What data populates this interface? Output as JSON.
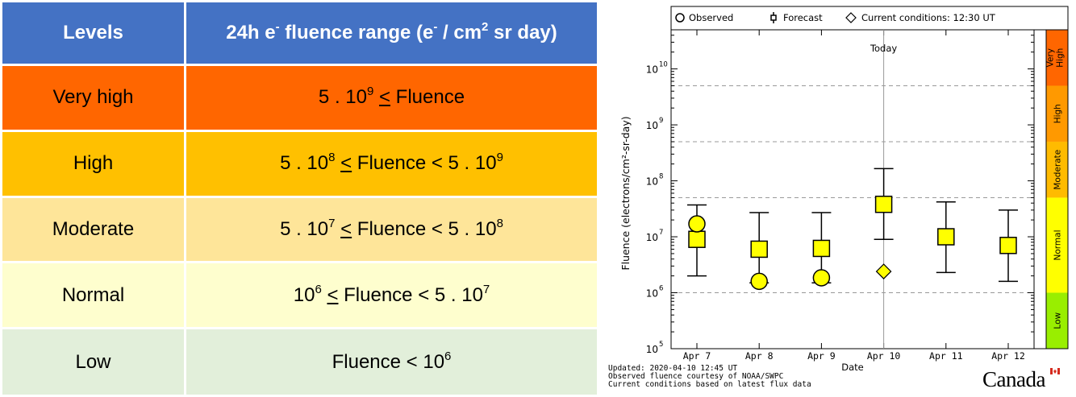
{
  "table": {
    "header": {
      "levels": "Levels",
      "range_prefix": "24h e",
      "range_e_sup": "-",
      "range_mid": " fluence range (e",
      "range_e2_sup": "-",
      "range_units": " / cm",
      "range_cm_sup": "2",
      "range_suffix": " sr day)"
    },
    "rows": [
      {
        "level": "Very high",
        "color": "#ff6600",
        "parts": [
          {
            "t": "5 . 10"
          },
          {
            "s": "9"
          },
          {
            "t": " "
          },
          {
            "u": "<"
          },
          {
            "t": " Fluence"
          }
        ]
      },
      {
        "level": "High",
        "color": "#ffc000",
        "parts": [
          {
            "t": "5 . 10"
          },
          {
            "s": "8"
          },
          {
            "t": " "
          },
          {
            "u": "<"
          },
          {
            "t": " Fluence < 5 . 10"
          },
          {
            "s": "9"
          }
        ]
      },
      {
        "level": "Moderate",
        "color": "#fee599",
        "parts": [
          {
            "t": "5 . 10"
          },
          {
            "s": "7"
          },
          {
            "t": " "
          },
          {
            "u": "<"
          },
          {
            "t": " Fluence < 5 . 10"
          },
          {
            "s": "8"
          }
        ]
      },
      {
        "level": "Normal",
        "color": "#fefece",
        "parts": [
          {
            "t": "10"
          },
          {
            "s": "6"
          },
          {
            "t": " "
          },
          {
            "u": "<"
          },
          {
            "t": " Fluence < 5 . 10"
          },
          {
            "s": "7"
          }
        ]
      },
      {
        "level": "Low",
        "color": "#e2efda",
        "parts": [
          {
            "t": "Fluence < 10"
          },
          {
            "s": "6"
          }
        ]
      }
    ]
  },
  "chart_data": {
    "type": "scatter",
    "legend": {
      "observed": "Observed",
      "forecast": "Forecast",
      "current": "Current conditions: 12:30 UT",
      "placement": "top"
    },
    "today_label": "Today",
    "xlabel": "Date",
    "ylabel": "Fluence (electrons/cm²-sr-day)",
    "y_scale": "log",
    "ylim": [
      100000,
      50000000000
    ],
    "y_ticks": [
      {
        "base": "10",
        "exp": "5",
        "value": 100000
      },
      {
        "base": "10",
        "exp": "6",
        "value": 1000000
      },
      {
        "base": "10",
        "exp": "7",
        "value": 10000000
      },
      {
        "base": "10",
        "exp": "8",
        "value": 100000000
      },
      {
        "base": "10",
        "exp": "9",
        "value": 1000000000
      },
      {
        "base": "10",
        "exp": "10",
        "value": 10000000000
      }
    ],
    "thresholds": [
      1000000,
      50000000,
      500000000,
      5000000000
    ],
    "categories": [
      "Apr  7",
      "Apr  8",
      "Apr  9",
      "Apr 10",
      "Apr 11",
      "Apr 12"
    ],
    "today_index": 3,
    "forecast": [
      {
        "value": 9000000,
        "low": 2000000,
        "high": 37000000
      },
      {
        "value": 6000000,
        "low": 1500000,
        "high": 27000000
      },
      {
        "value": 6200000,
        "low": 1500000,
        "high": 27000000
      },
      {
        "value": 38000000,
        "low": 9000000,
        "high": 165000000
      },
      {
        "value": 10000000,
        "low": 2300000,
        "high": 42000000
      },
      {
        "value": 7000000,
        "low": 1600000,
        "high": 30000000
      }
    ],
    "observed": [
      17000000,
      1600000,
      1850000
    ],
    "current": {
      "index": 3,
      "value": 2400000
    },
    "level_bands": [
      {
        "label": "Very High",
        "color": "#ff6600",
        "from": 5000000000,
        "to": 50000000000
      },
      {
        "label": "High",
        "color": "#ff9900",
        "from": 500000000,
        "to": 5000000000
      },
      {
        "label": "Moderate",
        "color": "#ffbb00",
        "from": 50000000,
        "to": 500000000
      },
      {
        "label": "Normal",
        "color": "#ffff00",
        "from": 1000000,
        "to": 50000000
      },
      {
        "label": "Low",
        "color": "#99ee00",
        "from": 100000,
        "to": 1000000
      }
    ],
    "marker_color": "#ffff00"
  },
  "footer": {
    "line1": "Updated: 2020-04-10 12:45 UT",
    "line2": "Observed fluence courtesy of NOAA/SWPC",
    "line3": "Current conditions based on latest flux data"
  },
  "logo": "Canada"
}
